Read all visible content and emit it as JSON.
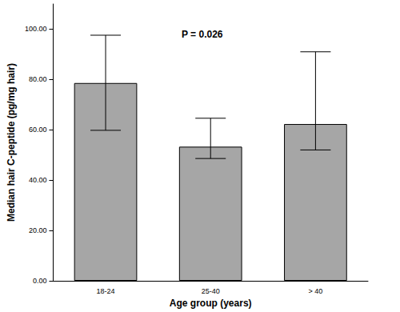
{
  "chart_data": {
    "type": "bar",
    "annotation": "P = 0.026",
    "x_label": "Age group (years)",
    "y_label": "Median hair C-peptide (pg/mg hair)",
    "categories": [
      "18-24",
      "25-40",
      "> 40"
    ],
    "values": [
      78.6,
      53.3,
      62.3
    ],
    "error_low": [
      59.8,
      48.6,
      52.0
    ],
    "error_high": [
      97.6,
      64.6,
      91.0
    ],
    "color": "#a6a6a6",
    "ylim": [
      0,
      110
    ],
    "yticks": [
      {
        "value": 0,
        "label": "0.00"
      },
      {
        "value": 20,
        "label": "20.00"
      },
      {
        "value": 40,
        "label": "40.00"
      },
      {
        "value": 60,
        "label": "60.00"
      },
      {
        "value": 80,
        "label": "80.00"
      },
      {
        "value": 100,
        "label": "100.00"
      }
    ],
    "grid": false
  }
}
